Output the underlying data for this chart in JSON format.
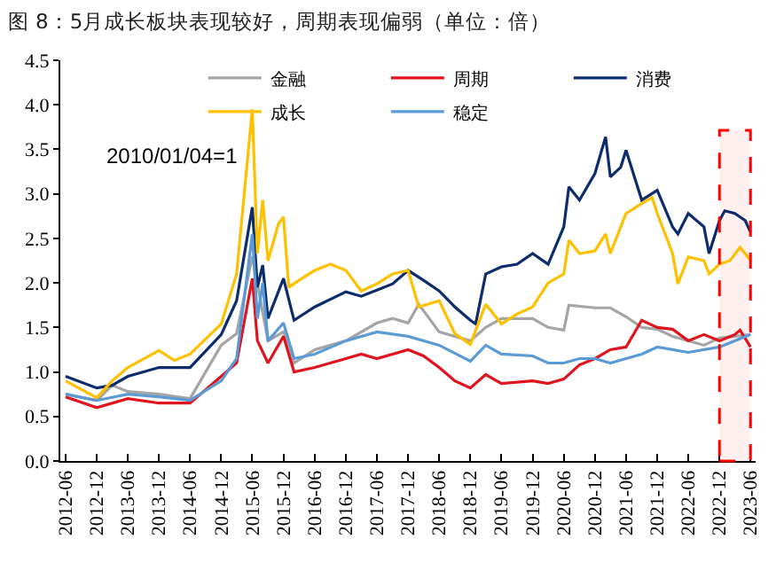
{
  "chart_data": {
    "type": "line",
    "title": "图 8：5月成长板块表现较好，周期表现偏弱（单位：倍）",
    "annotations": [
      "2010/01/04=1"
    ],
    "series": [
      {
        "name": "金融",
        "color": "#a5a5a5",
        "x": [
          "2012-06",
          "2012-12",
          "2013-03",
          "2013-06",
          "2013-12",
          "2014-06",
          "2014-12",
          "2015-03",
          "2015-06",
          "2015-09",
          "2015-12",
          "2016-02",
          "2016-06",
          "2016-12",
          "2017-06",
          "2017-09",
          "2017-12",
          "2018-02",
          "2018-06",
          "2018-12",
          "2019-03",
          "2019-06",
          "2019-12",
          "2020-03",
          "2020-06",
          "2020-07",
          "2020-12",
          "2021-03",
          "2021-06",
          "2021-09",
          "2021-12",
          "2022-03",
          "2022-06",
          "2022-09",
          "2022-12",
          "2023-03",
          "2023-06"
        ],
        "values": [
          0.75,
          0.68,
          0.85,
          0.78,
          0.75,
          0.7,
          1.3,
          1.43,
          2.3,
          1.35,
          1.45,
          1.1,
          1.25,
          1.35,
          1.55,
          1.6,
          1.55,
          1.76,
          1.45,
          1.35,
          1.5,
          1.6,
          1.6,
          1.5,
          1.47,
          1.75,
          1.72,
          1.72,
          1.62,
          1.5,
          1.48,
          1.4,
          1.35,
          1.3,
          1.38,
          1.4,
          1.42
        ]
      },
      {
        "name": "周期",
        "color": "#e0141e",
        "x": [
          "2012-06",
          "2012-12",
          "2013-06",
          "2013-12",
          "2014-06",
          "2014-12",
          "2015-03",
          "2015-06",
          "2015-07",
          "2015-09",
          "2015-12",
          "2016-02",
          "2016-06",
          "2016-12",
          "2017-03",
          "2017-06",
          "2017-12",
          "2018-03",
          "2018-06",
          "2018-09",
          "2018-12",
          "2019-03",
          "2019-06",
          "2019-12",
          "2020-03",
          "2020-06",
          "2020-09",
          "2020-12",
          "2021-03",
          "2021-06",
          "2021-09",
          "2021-12",
          "2022-03",
          "2022-06",
          "2022-09",
          "2022-12",
          "2023-03",
          "2023-04",
          "2023-06"
        ],
        "values": [
          0.72,
          0.6,
          0.7,
          0.65,
          0.65,
          0.95,
          1.1,
          2.05,
          1.35,
          1.1,
          1.4,
          1.0,
          1.05,
          1.15,
          1.2,
          1.15,
          1.25,
          1.18,
          1.05,
          0.9,
          0.82,
          0.97,
          0.87,
          0.9,
          0.87,
          0.92,
          1.08,
          1.15,
          1.25,
          1.28,
          1.58,
          1.5,
          1.48,
          1.35,
          1.42,
          1.35,
          1.42,
          1.47,
          1.28
        ]
      },
      {
        "name": "消费",
        "color": "#0c2c6c",
        "x": [
          "2012-06",
          "2012-12",
          "2013-03",
          "2013-06",
          "2013-12",
          "2014-06",
          "2014-12",
          "2015-03",
          "2015-06",
          "2015-07",
          "2015-08",
          "2015-09",
          "2015-12",
          "2016-02",
          "2016-06",
          "2016-12",
          "2017-03",
          "2017-06",
          "2017-09",
          "2017-12",
          "2018-03",
          "2018-06",
          "2018-09",
          "2018-12",
          "2019-01",
          "2019-03",
          "2019-06",
          "2019-09",
          "2019-12",
          "2020-03",
          "2020-06",
          "2020-07",
          "2020-09",
          "2020-12",
          "2021-02",
          "2021-03",
          "2021-05",
          "2021-06",
          "2021-09",
          "2021-12",
          "2022-03",
          "2022-04",
          "2022-06",
          "2022-09",
          "2022-10",
          "2022-12",
          "2023-01",
          "2023-03",
          "2023-05",
          "2023-06"
        ],
        "values": [
          0.95,
          0.82,
          0.85,
          0.95,
          1.05,
          1.05,
          1.42,
          1.8,
          2.85,
          1.95,
          2.2,
          1.6,
          2.05,
          1.58,
          1.73,
          1.9,
          1.85,
          1.92,
          1.99,
          2.14,
          2.03,
          1.91,
          1.73,
          1.58,
          1.54,
          2.1,
          2.18,
          2.21,
          2.33,
          2.21,
          2.63,
          3.08,
          2.93,
          3.23,
          3.64,
          3.19,
          3.3,
          3.49,
          2.93,
          3.04,
          2.63,
          2.55,
          2.78,
          2.63,
          2.33,
          2.7,
          2.81,
          2.78,
          2.7,
          2.57
        ]
      },
      {
        "name": "成长",
        "color": "#ffc000",
        "x": [
          "2012-06",
          "2012-12",
          "2013-03",
          "2013-06",
          "2013-12",
          "2014-03",
          "2014-06",
          "2014-12",
          "2015-03",
          "2015-06",
          "2015-07",
          "2015-08",
          "2015-09",
          "2015-11",
          "2015-12",
          "2016-01",
          "2016-03",
          "2016-06",
          "2016-09",
          "2016-12",
          "2017-03",
          "2017-06",
          "2017-09",
          "2017-12",
          "2018-02",
          "2018-06",
          "2018-09",
          "2018-12",
          "2019-03",
          "2019-06",
          "2019-09",
          "2019-12",
          "2020-03",
          "2020-06",
          "2020-07",
          "2020-09",
          "2020-12",
          "2021-02",
          "2021-03",
          "2021-06",
          "2021-09",
          "2021-11",
          "2021-12",
          "2022-03",
          "2022-04",
          "2022-06",
          "2022-09",
          "2022-10",
          "2022-12",
          "2023-02",
          "2023-04",
          "2023-06"
        ],
        "values": [
          0.9,
          0.71,
          0.9,
          1.05,
          1.24,
          1.13,
          1.2,
          1.54,
          2.1,
          3.95,
          2.33,
          2.93,
          2.25,
          2.66,
          2.74,
          1.95,
          2.03,
          2.14,
          2.21,
          2.14,
          1.91,
          1.99,
          2.1,
          2.14,
          1.73,
          1.8,
          1.43,
          1.31,
          1.76,
          1.54,
          1.65,
          1.73,
          2.0,
          2.1,
          2.48,
          2.33,
          2.36,
          2.55,
          2.33,
          2.78,
          2.89,
          2.96,
          2.78,
          2.33,
          1.99,
          2.29,
          2.25,
          2.1,
          2.21,
          2.25,
          2.4,
          2.25
        ]
      },
      {
        "name": "稳定",
        "color": "#5b9bd5",
        "x": [
          "2012-06",
          "2012-12",
          "2013-06",
          "2013-12",
          "2014-06",
          "2014-12",
          "2015-03",
          "2015-06",
          "2015-07",
          "2015-08",
          "2015-09",
          "2015-12",
          "2016-02",
          "2016-06",
          "2016-12",
          "2017-06",
          "2017-12",
          "2018-06",
          "2018-12",
          "2019-03",
          "2019-06",
          "2019-12",
          "2020-03",
          "2020-06",
          "2020-09",
          "2020-12",
          "2021-03",
          "2021-06",
          "2021-09",
          "2021-12",
          "2022-03",
          "2022-06",
          "2022-12",
          "2023-03",
          "2023-06"
        ],
        "values": [
          0.75,
          0.68,
          0.75,
          0.72,
          0.68,
          0.9,
          1.15,
          2.55,
          1.6,
          2.0,
          1.35,
          1.55,
          1.15,
          1.2,
          1.35,
          1.45,
          1.4,
          1.3,
          1.12,
          1.3,
          1.2,
          1.18,
          1.1,
          1.1,
          1.15,
          1.15,
          1.1,
          1.15,
          1.2,
          1.28,
          1.25,
          1.22,
          1.28,
          1.35,
          1.42
        ]
      }
    ],
    "xlim": [
      "2012-05",
      "2023-07"
    ],
    "xticks": [
      {
        "value": "2012-06",
        "label": "2012-06"
      },
      {
        "value": "2012-12",
        "label": "2012-12"
      },
      {
        "value": "2013-06",
        "label": "2013-06"
      },
      {
        "value": "2013-12",
        "label": "2013-12"
      },
      {
        "value": "2014-06",
        "label": "2014-06"
      },
      {
        "value": "2014-12",
        "label": "2014-12"
      },
      {
        "value": "2015-06",
        "label": "2015-06"
      },
      {
        "value": "2015-12",
        "label": "2015-12"
      },
      {
        "value": "2016-06",
        "label": "2016-06"
      },
      {
        "value": "2016-12",
        "label": "2016-12"
      },
      {
        "value": "2017-06",
        "label": "2017-06"
      },
      {
        "value": "2017-12",
        "label": "2017-12"
      },
      {
        "value": "2018-06",
        "label": "2018-06"
      },
      {
        "value": "2018-12",
        "label": "2018-12"
      },
      {
        "value": "2019-06",
        "label": "2019-06"
      },
      {
        "value": "2019-12",
        "label": "2019-12"
      },
      {
        "value": "2020-06",
        "label": "2020-06"
      },
      {
        "value": "2020-12",
        "label": "2020-12"
      },
      {
        "value": "2021-06",
        "label": "2021-06"
      },
      {
        "value": "2021-12",
        "label": "2021-12"
      },
      {
        "value": "2022-06",
        "label": "2022-06"
      },
      {
        "value": "2022-12",
        "label": "2022-12"
      },
      {
        "value": "2023-06",
        "label": "2023-06"
      }
    ],
    "ylim": [
      0,
      4.5
    ],
    "yticks": [
      {
        "value": 0,
        "label": "0.0"
      },
      {
        "value": 0.5,
        "label": "0.5"
      },
      {
        "value": 1,
        "label": "1.0"
      },
      {
        "value": 1.5,
        "label": "1.5"
      },
      {
        "value": 2,
        "label": "2.0"
      },
      {
        "value": 2.5,
        "label": "2.5"
      },
      {
        "value": 3,
        "label": "3.0"
      },
      {
        "value": 3.5,
        "label": "3.5"
      },
      {
        "value": 4,
        "label": "4.0"
      },
      {
        "value": 4.5,
        "label": "4.5"
      }
    ],
    "bands": [
      {
        "axis": "x",
        "from": "2022-12",
        "to": "2023-06",
        "color": "#ff0000"
      }
    ],
    "legend": "top",
    "grid": false,
    "marker": "none",
    "line_style": "solid"
  }
}
